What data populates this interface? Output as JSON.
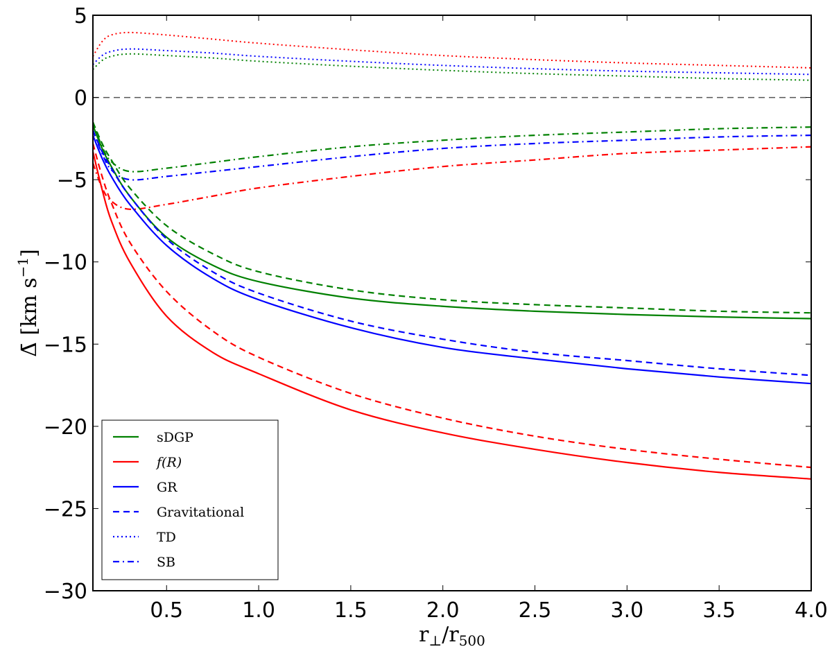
{
  "chart_data": {
    "type": "line",
    "title": "",
    "xlabel": {
      "main": "r",
      "sub1": "⊥",
      "mid": "/r",
      "sub2": "500"
    },
    "ylabel": {
      "main": "Δ̄ [km s",
      "sup": "−1",
      "end": "]"
    },
    "xlim": [
      0.1,
      4.0
    ],
    "ylim": [
      -30,
      5
    ],
    "xticks": [
      0.5,
      1.0,
      1.5,
      2.0,
      2.5,
      3.0,
      3.5,
      4.0
    ],
    "xtick_labels": [
      "0.5",
      "1.0",
      "1.5",
      "2.0",
      "2.5",
      "3.0",
      "3.5",
      "4.0"
    ],
    "yticks": [
      -30,
      -25,
      -20,
      -15,
      -10,
      -5,
      0,
      5
    ],
    "ytick_labels": [
      "−30",
      "−25",
      "−20",
      "−15",
      "−10",
      "−5",
      "0",
      "5"
    ],
    "reference_line": {
      "y": 0,
      "style": "dashed",
      "color": "#555555"
    },
    "colors": {
      "sDGP": "#008000",
      "f(R)": "#ff0000",
      "GR": "#0000ff"
    },
    "legend": {
      "placement": "lower-left",
      "entries": [
        {
          "label": "sDGP",
          "color": "#008000",
          "style": "solid"
        },
        {
          "label": "f(R)",
          "color": "#ff0000",
          "style": "solid"
        },
        {
          "label": "GR",
          "color": "#0000ff",
          "style": "solid"
        },
        {
          "label": "Gravitational",
          "color": "#0000ff",
          "style": "dashed"
        },
        {
          "label": "TD",
          "color": "#0000ff",
          "style": "dotted"
        },
        {
          "label": "SB",
          "color": "#0000ff",
          "style": "dashdot"
        }
      ]
    },
    "x": [
      0.1,
      0.15,
      0.2,
      0.3,
      0.5,
      0.75,
      1.0,
      1.5,
      2.0,
      2.5,
      3.0,
      3.5,
      4.0
    ],
    "series": [
      {
        "name": "f(R) TD",
        "color": "#ff0000",
        "style": "dotted",
        "values": [
          2.5,
          3.4,
          3.8,
          3.95,
          3.8,
          3.55,
          3.3,
          2.9,
          2.55,
          2.3,
          2.1,
          1.95,
          1.8
        ]
      },
      {
        "name": "GR TD",
        "color": "#0000ff",
        "style": "dotted",
        "values": [
          2.0,
          2.55,
          2.8,
          2.95,
          2.85,
          2.7,
          2.5,
          2.2,
          1.95,
          1.75,
          1.6,
          1.5,
          1.4
        ]
      },
      {
        "name": "sDGP TD",
        "color": "#008000",
        "style": "dotted",
        "values": [
          1.7,
          2.25,
          2.5,
          2.65,
          2.55,
          2.4,
          2.2,
          1.9,
          1.65,
          1.45,
          1.3,
          1.15,
          1.05
        ]
      },
      {
        "name": "sDGP SB",
        "color": "#008000",
        "style": "dashdot",
        "values": [
          -1.5,
          -3.0,
          -3.9,
          -4.5,
          -4.3,
          -3.95,
          -3.6,
          -3.0,
          -2.6,
          -2.3,
          -2.1,
          -1.9,
          -1.8
        ]
      },
      {
        "name": "GR SB",
        "color": "#0000ff",
        "style": "dashdot",
        "values": [
          -2.0,
          -3.4,
          -4.4,
          -5.0,
          -4.8,
          -4.5,
          -4.2,
          -3.6,
          -3.1,
          -2.8,
          -2.6,
          -2.4,
          -2.3
        ]
      },
      {
        "name": "f(R) SB",
        "color": "#ff0000",
        "style": "dashdot",
        "values": [
          -4.0,
          -5.5,
          -6.3,
          -6.8,
          -6.5,
          -6.0,
          -5.5,
          -4.8,
          -4.2,
          -3.8,
          -3.4,
          -3.2,
          -3.0
        ]
      },
      {
        "name": "sDGP",
        "color": "#008000",
        "style": "solid",
        "values": [
          -1.7,
          -3.1,
          -4.2,
          -6.0,
          -8.5,
          -10.2,
          -11.2,
          -12.2,
          -12.7,
          -13.0,
          -13.2,
          -13.35,
          -13.45
        ]
      },
      {
        "name": "sDGP Gravitational",
        "color": "#008000",
        "style": "dashed",
        "values": [
          -1.5,
          -2.8,
          -3.8,
          -5.5,
          -7.8,
          -9.5,
          -10.6,
          -11.7,
          -12.3,
          -12.6,
          -12.8,
          -13.0,
          -13.1
        ]
      },
      {
        "name": "GR",
        "color": "#0000ff",
        "style": "solid",
        "values": [
          -2.3,
          -3.7,
          -4.8,
          -6.5,
          -9.0,
          -11.0,
          -12.3,
          -14.0,
          -15.2,
          -15.9,
          -16.5,
          -17.0,
          -17.4
        ]
      },
      {
        "name": "GR Gravitational",
        "color": "#0000ff",
        "style": "dashed",
        "values": [
          -2.0,
          -3.3,
          -4.3,
          -6.0,
          -8.6,
          -10.6,
          -11.9,
          -13.6,
          -14.7,
          -15.5,
          -16.0,
          -16.5,
          -16.9
        ]
      },
      {
        "name": "f(R)",
        "color": "#ff0000",
        "style": "solid",
        "values": [
          -3.3,
          -5.6,
          -7.5,
          -10.0,
          -13.3,
          -15.5,
          -16.8,
          -19.0,
          -20.4,
          -21.4,
          -22.2,
          -22.8,
          -23.2
        ]
      },
      {
        "name": "f(R) Gravitational",
        "color": "#ff0000",
        "style": "dashed",
        "values": [
          -2.8,
          -4.8,
          -6.4,
          -8.8,
          -11.8,
          -14.2,
          -15.8,
          -18.0,
          -19.5,
          -20.6,
          -21.4,
          -22.0,
          -22.5
        ]
      }
    ]
  }
}
